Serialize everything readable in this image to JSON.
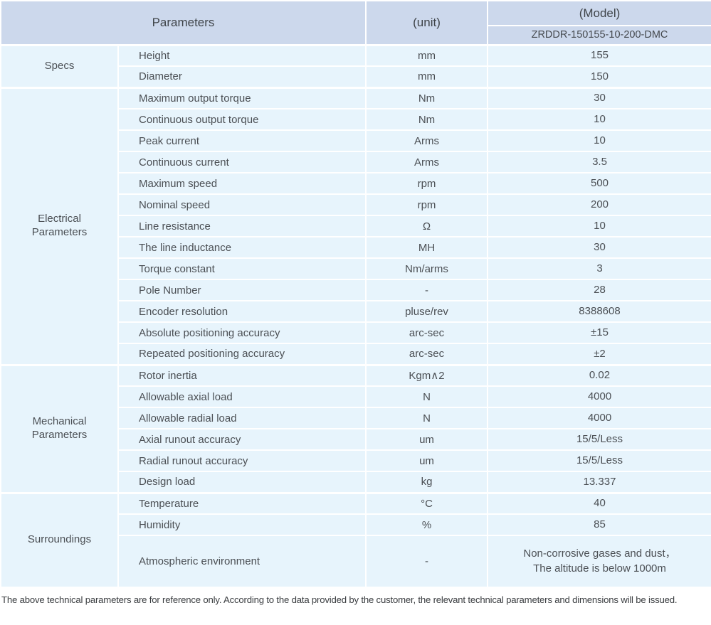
{
  "header": {
    "parameters_label": "Parameters",
    "unit_label": "(unit)",
    "model_label": "(Model)",
    "model_value": "ZRDDR-150155-10-200-DMC"
  },
  "sections": [
    {
      "category": "Specs",
      "rows": [
        {
          "param": "Height",
          "unit": "mm",
          "value": "155"
        },
        {
          "param": "Diameter",
          "unit": "mm",
          "value": "150"
        }
      ]
    },
    {
      "category": "Electrical\nParameters",
      "rows": [
        {
          "param": "Maximum output torque",
          "unit": "Nm",
          "value": "30"
        },
        {
          "param": "Continuous output torque",
          "unit": "Nm",
          "value": "10"
        },
        {
          "param": "Peak current",
          "unit": "Arms",
          "value": "10"
        },
        {
          "param": "Continuous current",
          "unit": "Arms",
          "value": "3.5"
        },
        {
          "param": "Maximum speed",
          "unit": "rpm",
          "value": "500"
        },
        {
          "param": "Nominal speed",
          "unit": "rpm",
          "value": "200"
        },
        {
          "param": "Line resistance",
          "unit": "Ω",
          "value": "10"
        },
        {
          "param": "The line inductance",
          "unit": "MH",
          "value": "30"
        },
        {
          "param": "Torque constant",
          "unit": "Nm/arms",
          "value": "3"
        },
        {
          "param": "Pole Number",
          "unit": "-",
          "value": "28"
        },
        {
          "param": "Encoder resolution",
          "unit": "pluse/rev",
          "value": "8388608"
        },
        {
          "param": "Absolute positioning accuracy",
          "unit": "arc-sec",
          "value": "±15"
        },
        {
          "param": "Repeated positioning accuracy",
          "unit": "arc-sec",
          "value": "±2"
        }
      ]
    },
    {
      "category": "Mechanical\nParameters",
      "rows": [
        {
          "param": "Rotor inertia",
          "unit": "Kgm∧2",
          "value": "0.02"
        },
        {
          "param": "Allowable axial load",
          "unit": "N",
          "value": "4000"
        },
        {
          "param": "Allowable radial load",
          "unit": "N",
          "value": "4000"
        },
        {
          "param": "Axial runout accuracy",
          "unit": "um",
          "value": "15/5/Less"
        },
        {
          "param": "Radial runout accuracy",
          "unit": "um",
          "value": "15/5/Less"
        },
        {
          "param": "Design load",
          "unit": "kg",
          "value": "13.337"
        }
      ]
    },
    {
      "category": "Surroundings",
      "rows": [
        {
          "param": "Temperature",
          "unit": "°C",
          "value": "40"
        },
        {
          "param": "Humidity",
          "unit": "%",
          "value": "85"
        },
        {
          "param": "Atmospheric environment",
          "unit": "-",
          "value": "Non-corrosive gases and dust，\nThe altitude is below 1000m"
        }
      ]
    }
  ],
  "footer_note": "The above technical parameters are for reference only. According to the data provided by the customer, the relevant technical parameters and dimensions will be issued.",
  "colors": {
    "header_bg": "#ccd8ec",
    "cell_bg": "#e7f4fc",
    "grid": "#ffffff",
    "text": "#4b4f54"
  }
}
